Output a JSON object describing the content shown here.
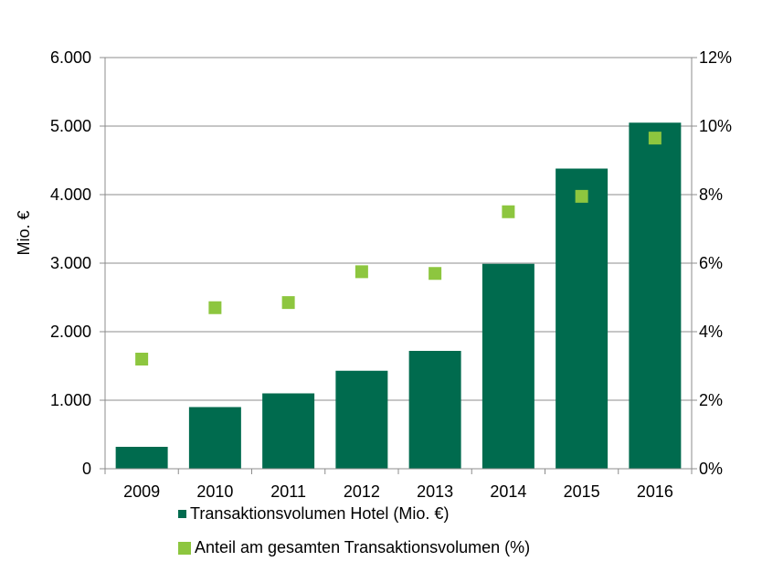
{
  "chart_data": {
    "type": "bar",
    "categories": [
      "2009",
      "2010",
      "2011",
      "2012",
      "2013",
      "2014",
      "2015",
      "2016"
    ],
    "series": [
      {
        "name": "Transaktionsvolumen Hotel (Mio. €)",
        "type": "bar",
        "axis": "left",
        "color": "#006B4E",
        "values": [
          320,
          900,
          1100,
          1430,
          1720,
          2990,
          4380,
          5050
        ]
      },
      {
        "name": "Anteil am gesamten Transaktionsvolumen (%)",
        "type": "scatter",
        "axis": "right",
        "color": "#8DC63F",
        "values": [
          3.2,
          4.7,
          4.85,
          5.75,
          5.7,
          7.5,
          7.95,
          9.65
        ]
      }
    ],
    "ylabel": "Mio. €",
    "ylim": [
      0,
      6000
    ],
    "y_ticks": [
      "0",
      "1.000",
      "2.000",
      "3.000",
      "4.000",
      "5.000",
      "6.000"
    ],
    "y2lim": [
      0,
      12
    ],
    "y2_ticks": [
      "0%",
      "2%",
      "4%",
      "6%",
      "8%",
      "10%",
      "12%"
    ],
    "grid": true,
    "legend_position": "bottom"
  }
}
